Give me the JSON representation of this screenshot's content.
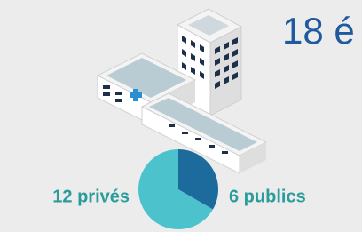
{
  "chart_data": {
    "type": "pie",
    "title": "18 é",
    "values": [
      12,
      6
    ],
    "value_labels": [
      "12 privés",
      "6 publics"
    ],
    "colors": [
      "#4cc3cc",
      "#1d6b9c"
    ]
  }
}
